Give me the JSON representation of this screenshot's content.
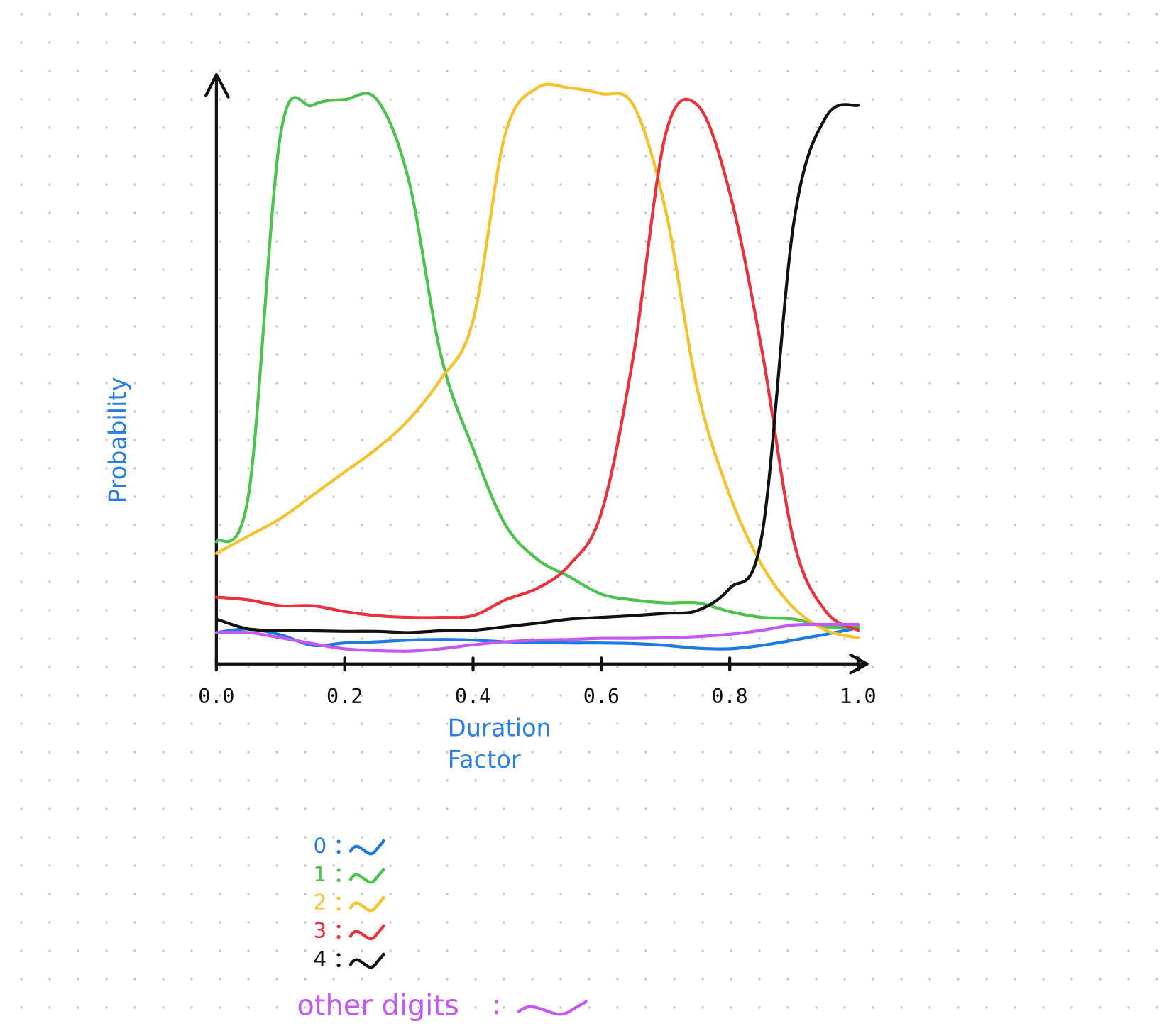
{
  "chart_data": {
    "type": "line",
    "x_label": "Duration Factor",
    "y_label": "Probability",
    "x": [
      0,
      0.05,
      0.1,
      0.15,
      0.2,
      0.25,
      0.3,
      0.35,
      0.4,
      0.45,
      0.5,
      0.55,
      0.6,
      0.65,
      0.7,
      0.75,
      0.8,
      0.85,
      0.9,
      0.95,
      1.0
    ],
    "xlim": [
      0,
      1
    ],
    "xticks": [
      {
        "value": 0,
        "label": "0.0"
      },
      0.2,
      0.4,
      0.6,
      0.8,
      {
        "value": 1,
        "label": "1.0"
      }
    ],
    "ylim": [
      0,
      1
    ],
    "series": [
      {
        "name": "0",
        "color": "#1f7ae0",
        "values": [
          0.054,
          0.06,
          0.05,
          0.032,
          0.036,
          0.038,
          0.041,
          0.042,
          0.041,
          0.038,
          0.037,
          0.036,
          0.036,
          0.035,
          0.032,
          0.027,
          0.026,
          0.032,
          0.041,
          0.051,
          0.062
        ]
      },
      {
        "name": "1",
        "color": "#4cc24f",
        "values": [
          0.21,
          0.29,
          0.91,
          0.96,
          0.97,
          0.97,
          0.83,
          0.53,
          0.37,
          0.24,
          0.18,
          0.15,
          0.12,
          0.11,
          0.105,
          0.105,
          0.09,
          0.08,
          0.077,
          0.064,
          0.064
        ]
      },
      {
        "name": "2",
        "color": "#f5c22f",
        "values": [
          0.19,
          0.22,
          0.25,
          0.29,
          0.33,
          0.37,
          0.42,
          0.49,
          0.59,
          0.91,
          0.99,
          0.99,
          0.98,
          0.96,
          0.78,
          0.47,
          0.29,
          0.17,
          0.096,
          0.058,
          0.045
        ]
      },
      {
        "name": "3",
        "color": "#e9323c",
        "values": [
          0.115,
          0.11,
          0.1,
          0.1,
          0.09,
          0.083,
          0.08,
          0.08,
          0.083,
          0.11,
          0.13,
          0.17,
          0.26,
          0.53,
          0.91,
          0.96,
          0.81,
          0.54,
          0.21,
          0.09,
          0.058
        ]
      },
      {
        "name": "4",
        "color": "#111111",
        "values": [
          0.077,
          0.06,
          0.058,
          0.057,
          0.056,
          0.056,
          0.054,
          0.057,
          0.058,
          0.064,
          0.07,
          0.077,
          0.08,
          0.083,
          0.087,
          0.092,
          0.13,
          0.22,
          0.76,
          0.94,
          0.96
        ]
      },
      {
        "name": "other digits",
        "color": "#c558f0",
        "values": [
          0.054,
          0.054,
          0.045,
          0.035,
          0.026,
          0.023,
          0.022,
          0.026,
          0.033,
          0.038,
          0.041,
          0.042,
          0.044,
          0.044,
          0.045,
          0.047,
          0.051,
          0.058,
          0.067,
          0.068,
          0.068
        ]
      }
    ]
  }
}
